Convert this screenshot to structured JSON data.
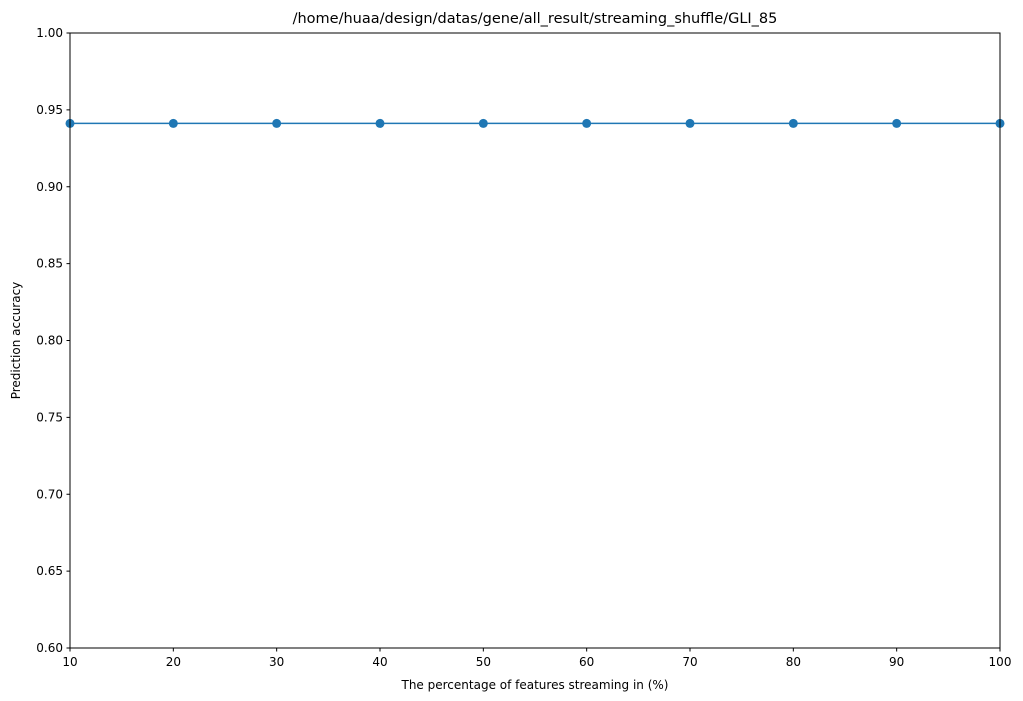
{
  "chart_data": {
    "type": "line",
    "title": "/home/huaa/design/datas/gene/all_result/streaming_shuffle/GLI_85",
    "xlabel": "The percentage of features streaming in (%)",
    "ylabel": "Prediction accuracy",
    "xlim": [
      10,
      100
    ],
    "ylim": [
      0.6,
      1.0
    ],
    "x_ticks": [
      "10",
      "20",
      "30",
      "40",
      "50",
      "60",
      "70",
      "80",
      "90",
      "100"
    ],
    "y_ticks": [
      "0.60",
      "0.65",
      "0.70",
      "0.75",
      "0.80",
      "0.85",
      "0.90",
      "0.95",
      "1.00"
    ],
    "x": [
      10,
      20,
      30,
      40,
      50,
      60,
      70,
      80,
      90,
      100
    ],
    "series": [
      {
        "values": [
          0.9412,
          0.9412,
          0.9412,
          0.9412,
          0.9412,
          0.9412,
          0.9412,
          0.9412,
          0.9412,
          0.9412
        ],
        "color": "#1f77b4",
        "marker": "circle"
      }
    ],
    "grid": false,
    "legend": "none"
  }
}
